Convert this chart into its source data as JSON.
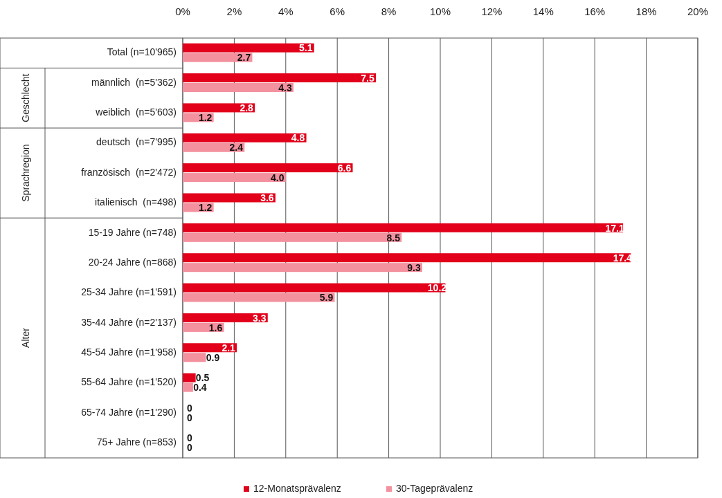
{
  "chart_data": {
    "type": "bar",
    "orientation": "horizontal",
    "categories": [
      "Total (n=10'965)",
      "männlich  (n=5'362)",
      "weiblich  (n=5'603)",
      "deutsch  (n=7'995)",
      "französisch  (n=2'472)",
      "italienisch  (n=498)",
      "15-19 Jahre (n=748)",
      "20-24 Jahre (n=868)",
      "25-34 Jahre (n=1'591)",
      "35-44 Jahre (n=2'137)",
      "45-54 Jahre (n=1'958)",
      "55-64 Jahre (n=1'520)",
      "65-74 Jahre (n=1'290)",
      "75+ Jahre (n=853)"
    ],
    "series": [
      {
        "name": "12-Monatsprävalenz",
        "color": "#e2001a",
        "values": [
          5.1,
          7.5,
          2.8,
          4.8,
          6.6,
          3.6,
          17.1,
          17.4,
          10.2,
          3.3,
          2.1,
          0.5,
          0,
          0
        ],
        "value_labels": [
          "5.1",
          "7.5",
          "2.8",
          "4.8",
          "6.6",
          "3.6",
          "17.1",
          "17.4",
          "10.2",
          "3.3",
          "2.1",
          "0.5",
          "0",
          "0"
        ]
      },
      {
        "name": "30-Tageprävalenz",
        "color": "#f4919f",
        "values": [
          2.7,
          4.3,
          1.2,
          2.4,
          4.0,
          1.2,
          8.5,
          9.3,
          5.9,
          1.6,
          0.9,
          0.4,
          0,
          0
        ],
        "value_labels": [
          "2.7",
          "4.3",
          "1.2",
          "2.4",
          "4.0",
          "1.2",
          "8.5",
          "9.3",
          "5.9",
          "1.6",
          "0.9",
          "0.4",
          "0",
          "0"
        ]
      }
    ],
    "xlim": [
      0,
      20
    ],
    "xticks": [
      {
        "value": 0,
        "label": "0%"
      },
      {
        "value": 2,
        "label": "2%"
      },
      {
        "value": 4,
        "label": "4%"
      },
      {
        "value": 6,
        "label": "6%"
      },
      {
        "value": 8,
        "label": "8%"
      },
      {
        "value": 10,
        "label": "10%"
      },
      {
        "value": 12,
        "label": "12%"
      },
      {
        "value": 14,
        "label": "14%"
      },
      {
        "value": 16,
        "label": "16%"
      },
      {
        "value": 18,
        "label": "18%"
      },
      {
        "value": 20,
        "label": "20%"
      }
    ],
    "grid": "x",
    "legend": "bottom",
    "annotations": [
      "Geschlecht",
      "Sprachregion",
      "Alter"
    ]
  }
}
